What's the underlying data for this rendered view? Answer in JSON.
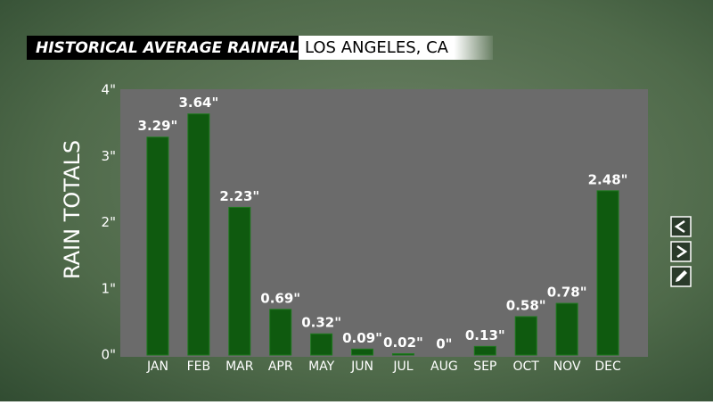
{
  "chart_data": {
    "type": "bar",
    "title": "HISTORICAL AVERAGE RAINFALL",
    "subtitle": "LOS ANGELES, CA",
    "y_label": "RAIN TOTALS",
    "categories": [
      "JAN",
      "FEB",
      "MAR",
      "APR",
      "MAY",
      "JUN",
      "JUL",
      "AUG",
      "SEP",
      "OCT",
      "NOV",
      "DEC"
    ],
    "values": [
      3.29,
      3.64,
      2.23,
      0.69,
      0.32,
      0.09,
      0.02,
      0,
      0.13,
      0.58,
      0.78,
      2.48
    ],
    "value_labels": [
      "3.29\"",
      "3.64\"",
      "2.23\"",
      "0.69\"",
      "0.32\"",
      "0.09\"",
      "0.02\"",
      "0\"",
      "0.13\"",
      "0.58\"",
      "0.78\"",
      "2.48\""
    ],
    "color": "#0f5a0f",
    "ylim": [
      0,
      4
    ],
    "yticks": [
      {
        "value": 0,
        "label": "0\""
      },
      {
        "value": 1,
        "label": "1\""
      },
      {
        "value": 2,
        "label": "2\""
      },
      {
        "value": 3,
        "label": "3\""
      },
      {
        "value": 4,
        "label": "4\""
      }
    ]
  }
}
